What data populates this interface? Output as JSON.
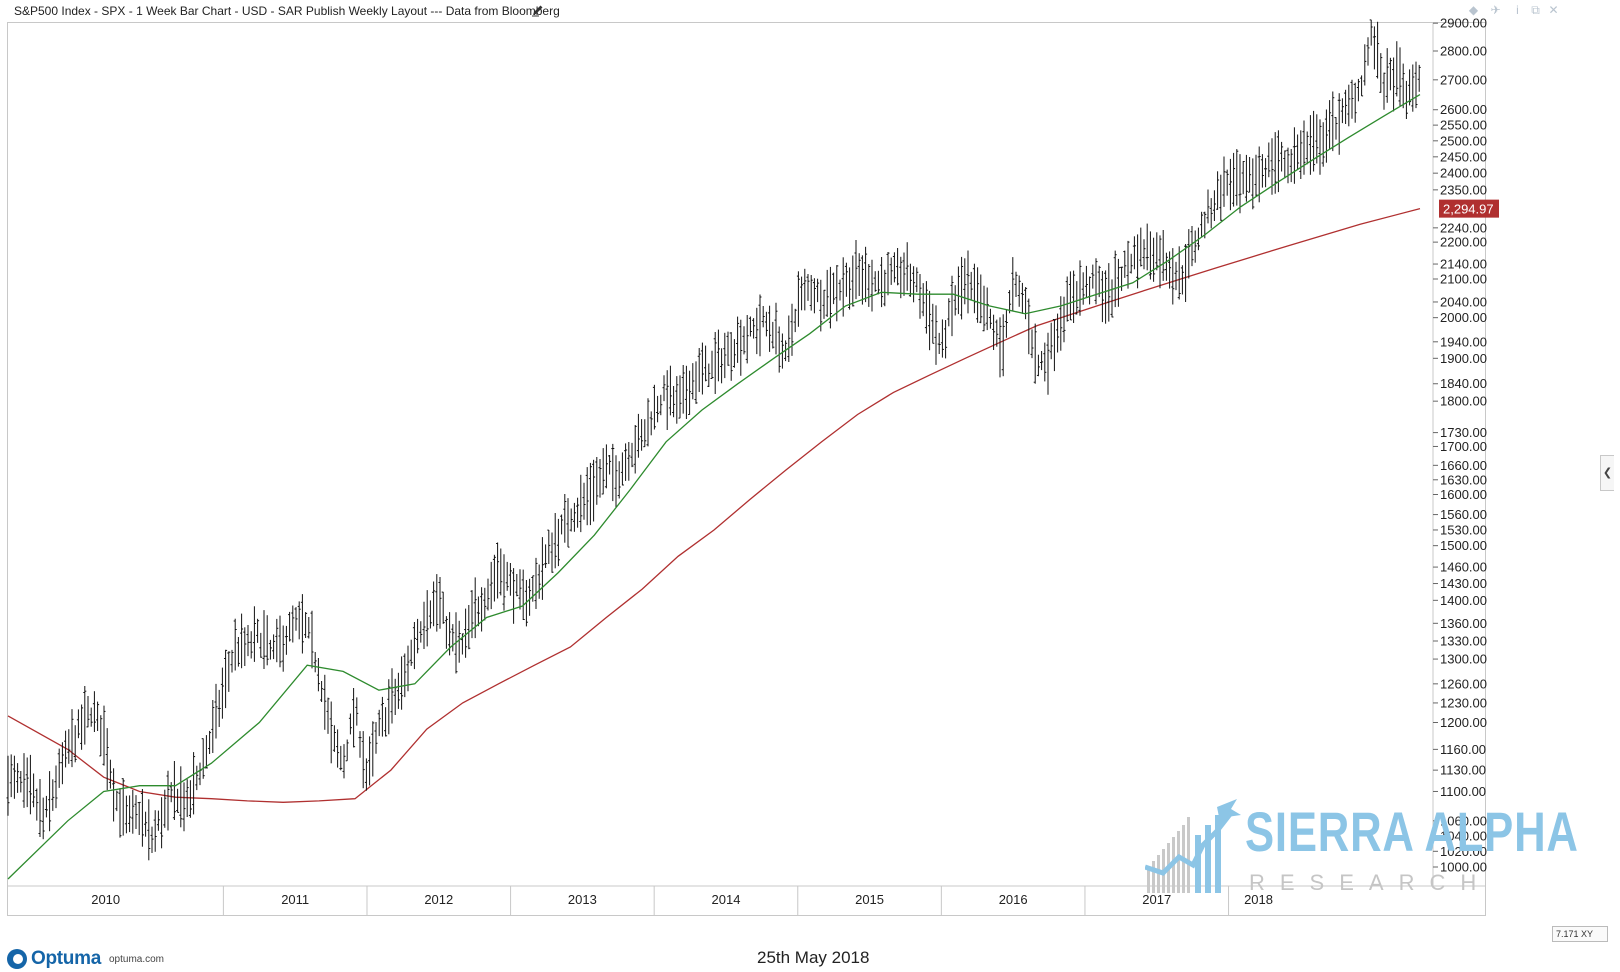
{
  "header": {
    "title": "S&P500 Index - SPX - 1 Week Bar Chart - USD - SAR Publish Weekly Layout --- Data from Bloomberg"
  },
  "window_icons": [
    "diamond-icon",
    "pin-icon",
    "info-icon",
    "restore-icon",
    "close-icon"
  ],
  "footer": {
    "brand": "Optuma",
    "site": "optuma.com",
    "date": "25th May 2018"
  },
  "watermark": {
    "name": "SIERRA ALPHA",
    "sub": "RESEARCH"
  },
  "xy_readout": "7.171 XY",
  "colors": {
    "bars": "#111111",
    "ma_short": "#2e8b2e",
    "ma_long": "#b03030",
    "price_label_bg": "#b03030",
    "watermark": "#8cc5e6"
  },
  "chart_data": {
    "type": "bar",
    "title": "S&P500 Index - SPX - 1 Week Bar Chart - USD - SAR Publish Weekly Layout --- Data from Bloomberg",
    "xlabel": "",
    "ylabel": "",
    "y_scale": "log",
    "ylim": [
      960,
      2930
    ],
    "x_tick_labels": [
      "2010",
      "2011",
      "2012",
      "2013",
      "2014",
      "2015",
      "2016",
      "2017",
      "2018"
    ],
    "y_tick_labels": [
      2900,
      2800,
      2700,
      2600,
      2550,
      2500,
      2450,
      2400,
      2350,
      2240,
      2200,
      2140,
      2100,
      2040,
      2000,
      1940,
      1900,
      1840,
      1800,
      1730,
      1700,
      1660,
      1630,
      1600,
      1560,
      1530,
      1500,
      1460,
      1430,
      1400,
      1360,
      1330,
      1300,
      1260,
      1230,
      1200,
      1160,
      1130,
      1100,
      1060,
      1040,
      1020,
      1000
    ],
    "last_value_label": "2,294.97",
    "grid": false,
    "price_path_points": [
      [
        "2009-07",
        1120
      ],
      [
        "2009-09",
        1100
      ],
      [
        "2009-10",
        1060
      ],
      [
        "2009-11",
        1110
      ],
      [
        "2009-12",
        1160
      ],
      [
        "2010-01",
        1190
      ],
      [
        "2010-02",
        1220
      ],
      [
        "2010-03",
        1180
      ],
      [
        "2010-04",
        1090
      ],
      [
        "2010-05",
        1060
      ],
      [
        "2010-06",
        1070
      ],
      [
        "2010-07",
        1035
      ],
      [
        "2010-08",
        1070
      ],
      [
        "2010-09",
        1100
      ],
      [
        "2010-10",
        1080
      ],
      [
        "2010-11",
        1130
      ],
      [
        "2010-12",
        1180
      ],
      [
        "2011-01",
        1250
      ],
      [
        "2011-02",
        1320
      ],
      [
        "2011-03",
        1320
      ],
      [
        "2011-04",
        1340
      ],
      [
        "2011-05",
        1310
      ],
      [
        "2011-06",
        1330
      ],
      [
        "2011-07",
        1360
      ],
      [
        "2011-08",
        1350
      ],
      [
        "2011-09",
        1280
      ],
      [
        "2011-10",
        1180
      ],
      [
        "2011-11",
        1140
      ],
      [
        "2011-12",
        1220
      ],
      [
        "2012-01",
        1120
      ],
      [
        "2012-02",
        1190
      ],
      [
        "2012-03",
        1230
      ],
      [
        "2012-04",
        1260
      ],
      [
        "2012-05",
        1330
      ],
      [
        "2012-06",
        1380
      ],
      [
        "2012-07",
        1400
      ],
      [
        "2012-08",
        1330
      ],
      [
        "2012-09",
        1320
      ],
      [
        "2012-10",
        1380
      ],
      [
        "2012-11",
        1410
      ],
      [
        "2012-12",
        1460
      ],
      [
        "2013-01",
        1430
      ],
      [
        "2013-02",
        1400
      ],
      [
        "2013-03",
        1420
      ],
      [
        "2013-04",
        1480
      ],
      [
        "2013-05",
        1520
      ],
      [
        "2013-06",
        1560
      ],
      [
        "2013-07",
        1580
      ],
      [
        "2013-08",
        1620
      ],
      [
        "2013-09",
        1650
      ],
      [
        "2013-10",
        1640
      ],
      [
        "2013-11",
        1690
      ],
      [
        "2013-12",
        1720
      ],
      [
        "2014-01",
        1780
      ],
      [
        "2014-02",
        1820
      ],
      [
        "2014-03",
        1790
      ],
      [
        "2014-04",
        1840
      ],
      [
        "2014-05",
        1870
      ],
      [
        "2014-06",
        1880
      ],
      [
        "2014-07",
        1910
      ],
      [
        "2014-08",
        1940
      ],
      [
        "2014-09",
        1960
      ],
      [
        "2014-10",
        1990
      ],
      [
        "2014-11",
        1970
      ],
      [
        "2014-12",
        1900
      ],
      [
        "2015-01",
        2040
      ],
      [
        "2015-02",
        2080
      ],
      [
        "2015-03",
        2050
      ],
      [
        "2015-04",
        2070
      ],
      [
        "2015-05",
        2090
      ],
      [
        "2015-06",
        2110
      ],
      [
        "2015-07",
        2100
      ],
      [
        "2015-08",
        2090
      ],
      [
        "2015-09",
        2110
      ],
      [
        "2015-10",
        2120
      ],
      [
        "2015-11",
        2080
      ],
      [
        "2015-12",
        2010
      ],
      [
        "2016-01",
        1920
      ],
      [
        "2016-02",
        2040
      ],
      [
        "2016-03",
        2090
      ],
      [
        "2016-04",
        2050
      ],
      [
        "2016-05",
        2000
      ],
      [
        "2016-06",
        1920
      ],
      [
        "2016-07",
        2080
      ],
      [
        "2016-08",
        2040
      ],
      [
        "2016-09",
        1880
      ],
      [
        "2016-10",
        1910
      ],
      [
        "2016-11",
        2000
      ],
      [
        "2016-12",
        2060
      ],
      [
        "2017-01",
        2080
      ],
      [
        "2017-02",
        2090
      ],
      [
        "2017-03",
        2050
      ],
      [
        "2017-04",
        2110
      ],
      [
        "2017-05",
        2160
      ],
      [
        "2017-06",
        2180
      ],
      [
        "2017-07",
        2170
      ],
      [
        "2017-08",
        2140
      ],
      [
        "2017-09",
        2100
      ],
      [
        "2017-10",
        2180
      ],
      [
        "2017-11",
        2260
      ],
      [
        "2017-12",
        2330
      ],
      [
        "2018-01",
        2380
      ],
      [
        "2018-02",
        2360
      ],
      [
        "2018-03",
        2380
      ],
      [
        "2018-04",
        2420
      ],
      [
        "2018-05",
        2440
      ],
      [
        "2018-06",
        2430
      ],
      [
        "2018-07",
        2470
      ],
      [
        "2018-08",
        2480
      ],
      [
        "2018-09",
        2510
      ],
      [
        "2018-10",
        2560
      ],
      [
        "2018-11",
        2600
      ],
      [
        "2018-12",
        2680
      ],
      [
        "2019-01",
        2860
      ],
      [
        "2019-02",
        2680
      ],
      [
        "2019-03",
        2720
      ],
      [
        "2019-04",
        2640
      ],
      [
        "2019-05",
        2720
      ]
    ],
    "series": [
      {
        "role": "short-moving-average",
        "color": "#2e8b2e",
        "points": [
          [
            "2009-07",
            985
          ],
          [
            "2009-12",
            1060
          ],
          [
            "2010-03",
            1100
          ],
          [
            "2010-06",
            1108
          ],
          [
            "2010-09",
            1108
          ],
          [
            "2010-12",
            1140
          ],
          [
            "2011-04",
            1200
          ],
          [
            "2011-08",
            1290
          ],
          [
            "2011-11",
            1280
          ],
          [
            "2012-02",
            1250
          ],
          [
            "2012-05",
            1260
          ],
          [
            "2012-08",
            1320
          ],
          [
            "2012-11",
            1370
          ],
          [
            "2013-02",
            1390
          ],
          [
            "2013-05",
            1450
          ],
          [
            "2013-08",
            1520
          ],
          [
            "2013-11",
            1610
          ],
          [
            "2014-02",
            1710
          ],
          [
            "2014-05",
            1780
          ],
          [
            "2014-08",
            1840
          ],
          [
            "2014-11",
            1900
          ],
          [
            "2015-02",
            1960
          ],
          [
            "2015-05",
            2030
          ],
          [
            "2015-08",
            2065
          ],
          [
            "2015-11",
            2060
          ],
          [
            "2016-02",
            2060
          ],
          [
            "2016-05",
            2030
          ],
          [
            "2016-08",
            2010
          ],
          [
            "2016-11",
            2030
          ],
          [
            "2017-02",
            2060
          ],
          [
            "2017-05",
            2090
          ],
          [
            "2017-08",
            2150
          ],
          [
            "2017-11",
            2220
          ],
          [
            "2018-02",
            2300
          ],
          [
            "2018-05",
            2370
          ],
          [
            "2018-08",
            2440
          ],
          [
            "2018-11",
            2510
          ],
          [
            "2019-02",
            2580
          ],
          [
            "2019-05",
            2650
          ]
        ]
      },
      {
        "role": "long-moving-average",
        "color": "#b03030",
        "points": [
          [
            "2009-07",
            1210
          ],
          [
            "2009-12",
            1160
          ],
          [
            "2010-03",
            1120
          ],
          [
            "2010-06",
            1100
          ],
          [
            "2010-09",
            1092
          ],
          [
            "2010-12",
            1090
          ],
          [
            "2011-03",
            1087
          ],
          [
            "2011-06",
            1085
          ],
          [
            "2011-09",
            1087
          ],
          [
            "2011-12",
            1090
          ],
          [
            "2012-03",
            1130
          ],
          [
            "2012-06",
            1190
          ],
          [
            "2012-09",
            1230
          ],
          [
            "2012-12",
            1260
          ],
          [
            "2013-03",
            1290
          ],
          [
            "2013-06",
            1320
          ],
          [
            "2013-09",
            1370
          ],
          [
            "2013-12",
            1420
          ],
          [
            "2014-03",
            1480
          ],
          [
            "2014-06",
            1530
          ],
          [
            "2014-09",
            1590
          ],
          [
            "2014-12",
            1650
          ],
          [
            "2015-03",
            1710
          ],
          [
            "2015-06",
            1770
          ],
          [
            "2015-09",
            1820
          ],
          [
            "2015-12",
            1860
          ],
          [
            "2016-03",
            1900
          ],
          [
            "2016-06",
            1940
          ],
          [
            "2016-09",
            1980
          ],
          [
            "2016-12",
            2010
          ],
          [
            "2017-03",
            2040
          ],
          [
            "2017-06",
            2070
          ],
          [
            "2017-09",
            2100
          ],
          [
            "2017-12",
            2130
          ],
          [
            "2018-03",
            2160
          ],
          [
            "2018-06",
            2190
          ],
          [
            "2018-09",
            2220
          ],
          [
            "2018-12",
            2250
          ],
          [
            "2019-05",
            2295
          ]
        ]
      }
    ]
  }
}
